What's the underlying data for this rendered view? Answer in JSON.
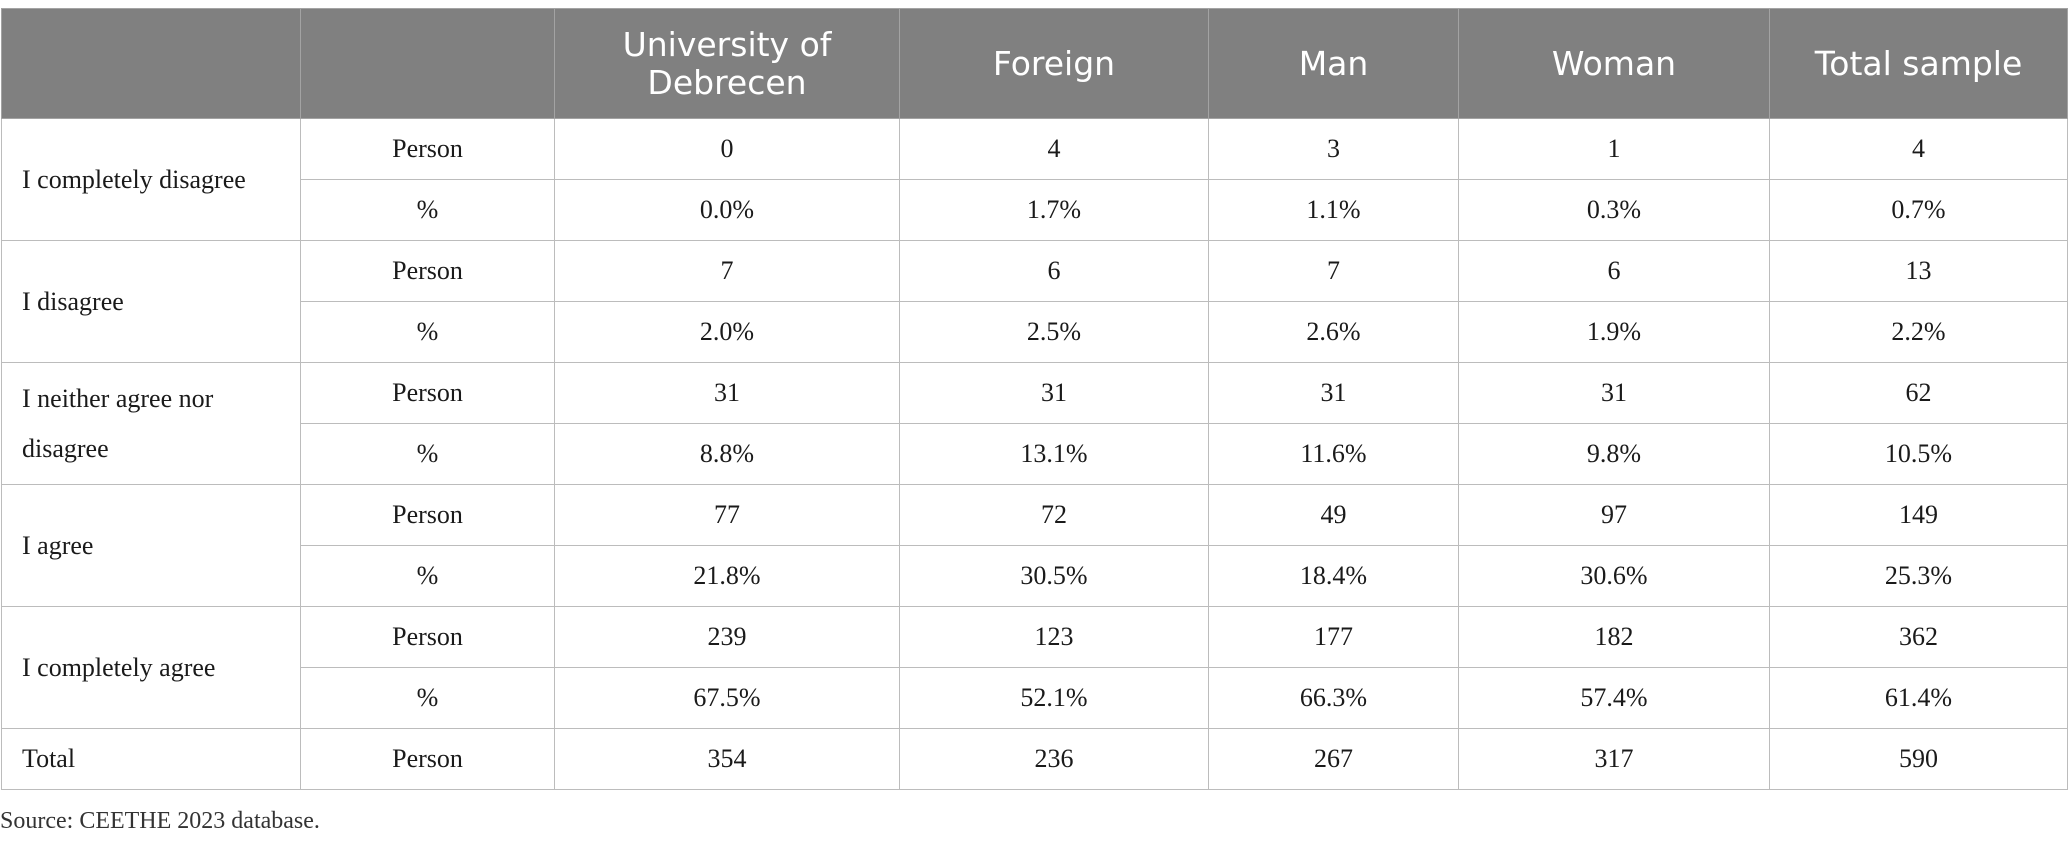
{
  "table": {
    "headers": [
      "",
      "",
      "University of Debrecen",
      "Foreign",
      "Man",
      "Woman",
      "Total sample"
    ],
    "groups": [
      {
        "label": "I completely disagree",
        "rows": [
          {
            "measure": "Person",
            "values": [
              "0",
              "4",
              "3",
              "1",
              "4"
            ]
          },
          {
            "measure": "%",
            "values": [
              "0.0%",
              "1.7%",
              "1.1%",
              "0.3%",
              "0.7%"
            ]
          }
        ]
      },
      {
        "label": "I disagree",
        "rows": [
          {
            "measure": "Person",
            "values": [
              "7",
              "6",
              "7",
              "6",
              "13"
            ]
          },
          {
            "measure": "%",
            "values": [
              "2.0%",
              "2.5%",
              "2.6%",
              "1.9%",
              "2.2%"
            ]
          }
        ]
      },
      {
        "label": "I neither agree nor disagree",
        "rows": [
          {
            "measure": "Person",
            "values": [
              "31",
              "31",
              "31",
              "31",
              "62"
            ]
          },
          {
            "measure": "%",
            "values": [
              "8.8%",
              "13.1%",
              "11.6%",
              "9.8%",
              "10.5%"
            ]
          }
        ]
      },
      {
        "label": "I agree",
        "rows": [
          {
            "measure": "Person",
            "values": [
              "77",
              "72",
              "49",
              "97",
              "149"
            ]
          },
          {
            "measure": "%",
            "values": [
              "21.8%",
              "30.5%",
              "18.4%",
              "30.6%",
              "25.3%"
            ]
          }
        ]
      },
      {
        "label": "I completely agree",
        "rows": [
          {
            "measure": "Person",
            "values": [
              "239",
              "123",
              "177",
              "182",
              "362"
            ]
          },
          {
            "measure": "%",
            "values": [
              "67.5%",
              "52.1%",
              "66.3%",
              "57.4%",
              "61.4%"
            ]
          }
        ]
      },
      {
        "label": "Total",
        "rows": [
          {
            "measure": "Person",
            "values": [
              "354",
              "236",
              "267",
              "317",
              "590"
            ]
          }
        ]
      }
    ]
  },
  "source_note": "Source: CEETHE 2023 database.",
  "colors": {
    "header_background": "#808080",
    "header_text": "#ffffff",
    "border": "#bcbcbc"
  }
}
